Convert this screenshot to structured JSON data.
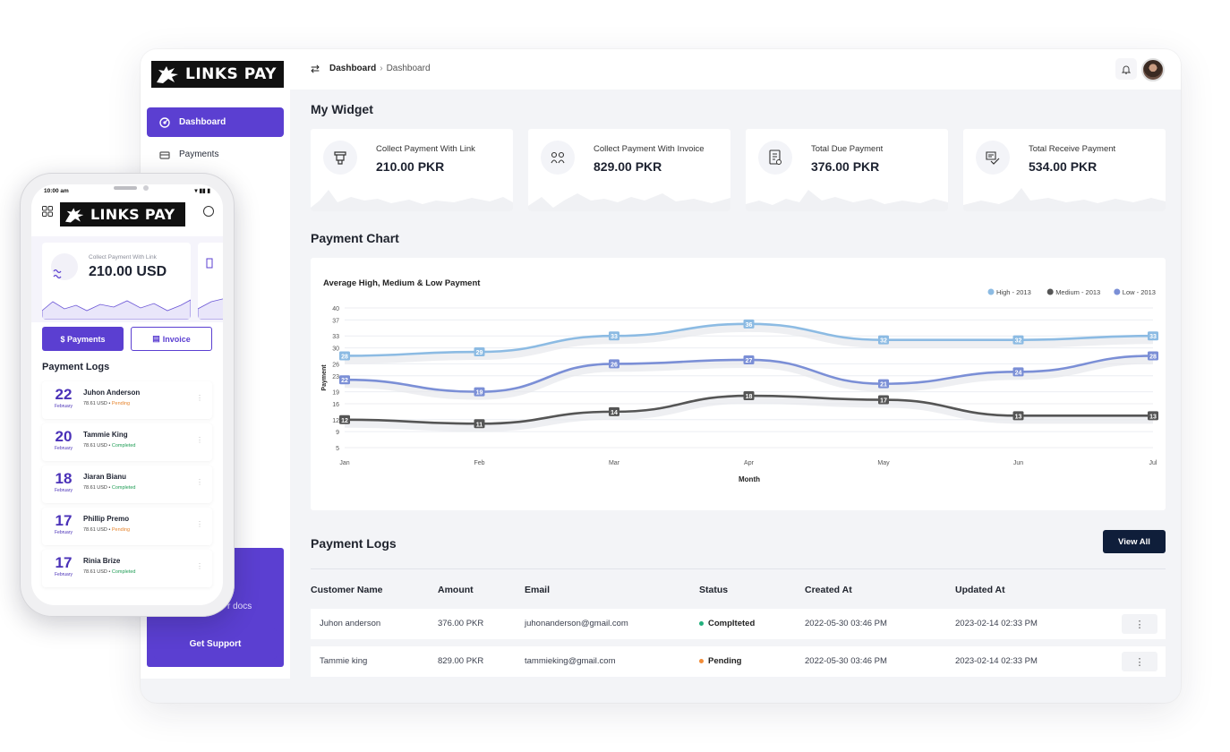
{
  "brand": {
    "logo_text": "LINKS PAY"
  },
  "sidebar": {
    "items": [
      {
        "label": "Dashboard",
        "icon": "dashboard-icon"
      },
      {
        "label": "Payments",
        "icon": "payments-icon"
      }
    ],
    "docs_label": "r docs",
    "support_label": "Get Support"
  },
  "header": {
    "breadcrumb": [
      "Dashboard",
      "Dashboard"
    ]
  },
  "widgets_title": "My Widget",
  "widgets": [
    {
      "label": "Collect Payment With Link",
      "value": "210.00 PKR",
      "icon": "link-payment-icon"
    },
    {
      "label": "Collect Payment With Invoice",
      "value": "829.00 PKR",
      "icon": "invoice-payment-icon"
    },
    {
      "label": "Total Due Payment",
      "value": "376.00 PKR",
      "icon": "due-payment-icon"
    },
    {
      "label": "Total Receive Payment",
      "value": "534.00 PKR",
      "icon": "receive-payment-icon"
    }
  ],
  "chart_section_title": "Payment Chart",
  "chart_data": {
    "type": "line",
    "title": "Average High, Medium & Low Payment",
    "xlabel": "Month",
    "ylabel": "Payment",
    "categories": [
      "Jan",
      "Feb",
      "Mar",
      "Apr",
      "May",
      "Jun",
      "Jul"
    ],
    "y_ticks": [
      5,
      9,
      12,
      16,
      19,
      23,
      26,
      30,
      33,
      37,
      40
    ],
    "ylim": [
      5,
      40
    ],
    "legend_position": "top-right",
    "series": [
      {
        "name": "High - 2013",
        "color": "#8cbbe3",
        "values": [
          28,
          29,
          33,
          36,
          32,
          32,
          33
        ]
      },
      {
        "name": "Medium - 2013",
        "color": "#555555",
        "values": [
          12,
          11,
          14,
          18,
          17,
          13,
          13
        ]
      },
      {
        "name": "Low - 2013",
        "color": "#7b8fd6",
        "values": [
          22,
          19,
          26,
          27,
          21,
          24,
          28
        ]
      }
    ]
  },
  "logs": {
    "title": "Payment Logs",
    "view_all_label": "View All",
    "columns": [
      "Customer Name",
      "Amount",
      "Email",
      "Status",
      "Created At",
      "Updated At"
    ],
    "rows": [
      {
        "name": "Juhon anderson",
        "amount": "376.00 PKR",
        "email": "juhonanderson@gmail.com",
        "status": "Complteted",
        "status_color": "#22b07d",
        "created": "2022-05-30 03:46 PM",
        "updated": "2023-02-14 02:33 PM"
      },
      {
        "name": "Tammie king",
        "amount": "829.00 PKR",
        "email": "tammieking@gmail.com",
        "status": "Pending",
        "status_color": "#f28c38",
        "created": "2022-05-30 03:46 PM",
        "updated": "2023-02-14 02:33 PM"
      }
    ],
    "more_glyph": "⋮"
  },
  "phone": {
    "time": "10:00 am",
    "card_label": "Collect Payment With Link",
    "card_value": "210.00 USD",
    "btn_payments": "$ Payments",
    "btn_invoice": "Invoice",
    "logs_title": "Payment Logs",
    "items": [
      {
        "day": "22",
        "month": "February",
        "name": "Juhon Anderson",
        "amount": "78.61 USD",
        "status": "Pending"
      },
      {
        "day": "20",
        "month": "February",
        "name": "Tammie King",
        "amount": "78.61 USD",
        "status": "Completed"
      },
      {
        "day": "18",
        "month": "February",
        "name": "Jiaran Bianu",
        "amount": "78.61 USD",
        "status": "Completed"
      },
      {
        "day": "17",
        "month": "February",
        "name": "Phillip Premo",
        "amount": "78.61 USD",
        "status": "Pending"
      },
      {
        "day": "17",
        "month": "February",
        "name": "Rinia Brize",
        "amount": "78.61 USD",
        "status": "Completed"
      }
    ]
  },
  "colors": {
    "accent": "#5b3fd1",
    "dark_button": "#0f1e3a",
    "pending": "#e6852f",
    "completed": "#1f9d55"
  }
}
